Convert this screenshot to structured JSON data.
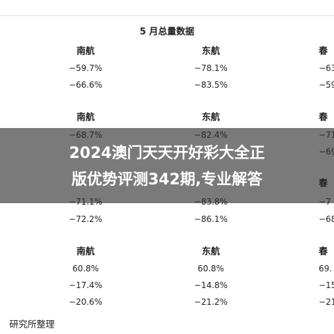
{
  "title": "5 月总量数据",
  "blocks": [
    {
      "headers": [
        "南航",
        "东航",
        "春"
      ],
      "rows": [
        [
          "−59.7%",
          "−78.1%",
          "−63"
        ],
        [
          "−66.6%",
          "−83.5%",
          "−59"
        ]
      ]
    },
    {
      "headers": [
        "南航",
        "东航",
        "春"
      ],
      "rows": [
        [
          "−68.7%",
          "−82.4%",
          "−71"
        ],
        [
          "",
          "",
          "−69"
        ]
      ]
    },
    {
      "headers": [
        "",
        "",
        "春"
      ],
      "rows": [
        [
          "−71.1%",
          "−83.8%",
          "−7"
        ],
        [
          "−72.2%",
          "−86.1%",
          "−68"
        ]
      ]
    },
    {
      "headers": [
        "南航",
        "东航",
        "春"
      ],
      "rows": [
        [
          "60.8%",
          "60.8%",
          "69."
        ],
        [
          "−17.4%",
          "−14.8%",
          "−15"
        ],
        [
          "−20.6%",
          "−21.2%",
          "−21"
        ]
      ]
    }
  ],
  "footer": "研究所整理",
  "banner": {
    "lines": [
      "2024澳门天天开好彩大全正",
      "版优势评测342期,专业解答"
    ]
  }
}
